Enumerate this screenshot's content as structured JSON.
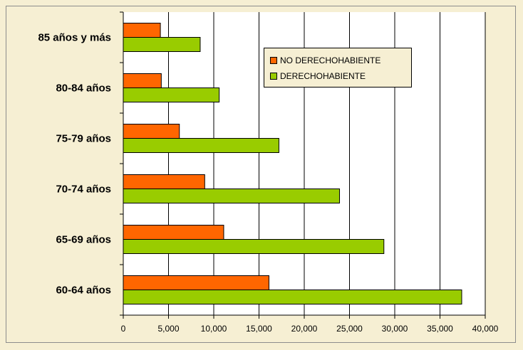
{
  "chart_data": {
    "type": "bar",
    "orientation": "horizontal",
    "categories": [
      "60-64 años",
      "65-69 años",
      "70-74 años",
      "75-79 años",
      "80-84 años",
      "85 años y más"
    ],
    "series": [
      {
        "name": "NO DERECHOHABIENTE",
        "color": "#ff6600",
        "values": [
          16100,
          11100,
          9000,
          6200,
          4200,
          4100
        ]
      },
      {
        "name": "DERECHOHABIENTE",
        "color": "#99cc00",
        "values": [
          37400,
          28800,
          23900,
          17200,
          10600,
          8500
        ]
      }
    ],
    "x_ticks": [
      "0",
      "5,000",
      "10,000",
      "15,000",
      "20,000",
      "25,000",
      "30,000",
      "35,000",
      "40,000"
    ],
    "xlim": [
      0,
      40000
    ],
    "grid": "vertical",
    "legend_position": "top-right",
    "background": "#f6efd3",
    "plot_background": "#ffffff"
  }
}
